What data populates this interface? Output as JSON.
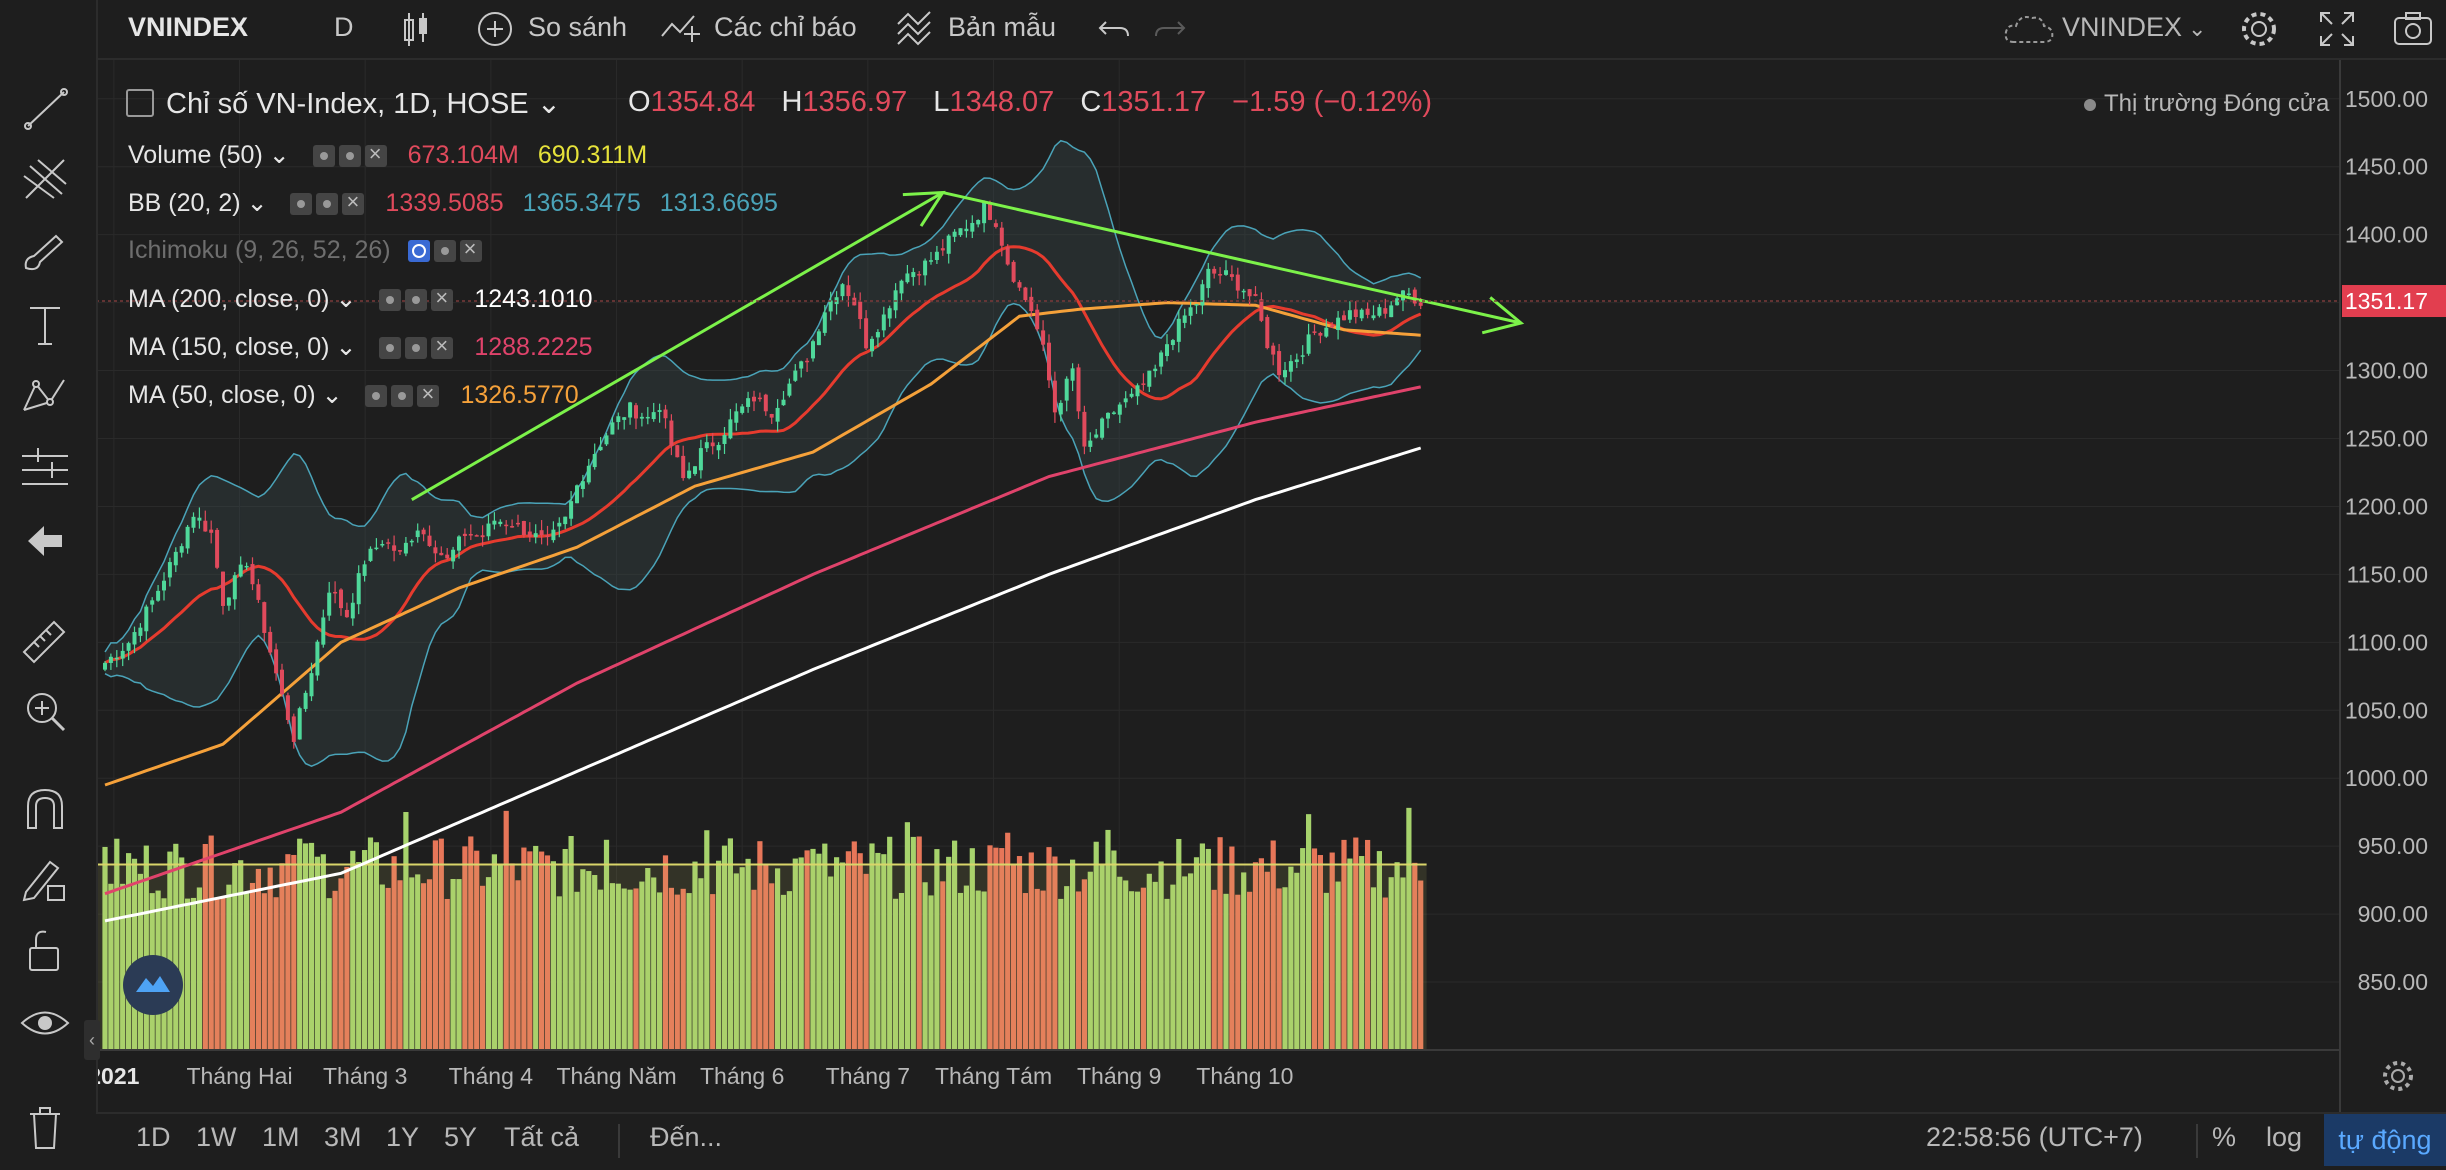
{
  "toolbar": {
    "symbol": "VNINDEX",
    "interval": "D",
    "compare": "So sánh",
    "indicators": "Các chỉ báo",
    "templates": "Bản mẫu",
    "right_symbol": "VNINDEX"
  },
  "legend": {
    "title": "Chỉ số VN-Index, 1D, HOSE",
    "o_label": "O",
    "o": "1354.84",
    "h_label": "H",
    "h": "1356.97",
    "l_label": "L",
    "l": "1348.07",
    "c_label": "C",
    "c": "1351.17",
    "change": "−1.59 (−0.12%)",
    "market_status": "Thị trường Đóng cửa",
    "volume_label": "Volume (50)",
    "volume_v1": "673.104M",
    "volume_v2": "690.311M",
    "bb_label": "BB (20, 2)",
    "bb_v1": "1339.5085",
    "bb_v2": "1365.3475",
    "bb_v3": "1313.6695",
    "ichimoku_label": "Ichimoku (9, 26, 52, 26)",
    "ma200_label": "MA (200, close, 0)",
    "ma200_v": "1243.1010",
    "ma150_label": "MA (150, close, 0)",
    "ma150_v": "1288.2225",
    "ma50_label": "MA (50, close, 0)",
    "ma50_v": "1326.5770"
  },
  "bottom": {
    "ranges": [
      "1D",
      "1W",
      "1M",
      "3M",
      "1Y",
      "5Y",
      "Tất cả"
    ],
    "goto": "Đến...",
    "clock": "22:58:56 (UTC+7)",
    "percent": "%",
    "log": "log",
    "auto": "tự động"
  },
  "colors": {
    "up": "#4fd89a",
    "down": "#e04a5c",
    "ma50": "#f5a13a",
    "ma150": "#e0436b",
    "ma200": "#ffffff",
    "bb_mid": "#e63b2e",
    "bb_band": "#4aa3b8",
    "trend": "#7cf24a",
    "vol_up": "#a6d26c",
    "vol_down": "#e77659",
    "price_tag": "#e23e4f"
  },
  "chart_data": {
    "type": "candlestick",
    "yaxis": {
      "range": [
        800,
        1530
      ],
      "ticks": [
        850,
        900,
        950,
        1000,
        1050,
        1100,
        1150,
        1200,
        1250,
        1300,
        1350,
        1400,
        1450,
        1500
      ],
      "tick_labels": [
        "850.00",
        "900.00",
        "950.00",
        "1000.00",
        "1050.00",
        "1100.00",
        "1150.00",
        "1200.00",
        "1250.00",
        "1300.00",
        "1350.00",
        "1400.00",
        "1450.00",
        "1500.00"
      ]
    },
    "xaxis": {
      "labels": [
        {
          "text": "2021",
          "month": 1,
          "day": 1
        },
        {
          "text": "Tháng Hai",
          "month": 2,
          "day": 1
        },
        {
          "text": "Tháng 3",
          "month": 3,
          "day": 1
        },
        {
          "text": "Tháng 4",
          "month": 4,
          "day": 1
        },
        {
          "text": "Tháng Năm",
          "month": 5,
          "day": 1
        },
        {
          "text": "Tháng 6",
          "month": 6,
          "day": 1
        },
        {
          "text": "Tháng 7",
          "month": 7,
          "day": 1
        },
        {
          "text": "Tháng Tám",
          "month": 8,
          "day": 1
        },
        {
          "text": "Tháng 9",
          "month": 9,
          "day": 1
        },
        {
          "text": "Tháng 10",
          "month": 10,
          "day": 1
        }
      ]
    },
    "last_price_label": "1351.17",
    "close_anchors": [
      [
        0,
        1085
      ],
      [
        4,
        1100
      ],
      [
        8,
        1130
      ],
      [
        12,
        1165
      ],
      [
        15,
        1195
      ],
      [
        18,
        1180
      ],
      [
        20,
        1130
      ],
      [
        24,
        1160
      ],
      [
        27,
        1110
      ],
      [
        30,
        1060
      ],
      [
        32,
        1030
      ],
      [
        35,
        1080
      ],
      [
        38,
        1140
      ],
      [
        41,
        1120
      ],
      [
        44,
        1160
      ],
      [
        47,
        1175
      ],
      [
        50,
        1165
      ],
      [
        53,
        1185
      ],
      [
        56,
        1170
      ],
      [
        58,
        1160
      ],
      [
        61,
        1180
      ],
      [
        64,
        1178
      ],
      [
        66,
        1190
      ],
      [
        69,
        1188
      ],
      [
        72,
        1180
      ],
      [
        75,
        1173
      ],
      [
        78,
        1190
      ],
      [
        80,
        1215
      ],
      [
        83,
        1240
      ],
      [
        86,
        1260
      ],
      [
        89,
        1272
      ],
      [
        92,
        1265
      ],
      [
        94,
        1275
      ],
      [
        96,
        1245
      ],
      [
        98,
        1220
      ],
      [
        101,
        1240
      ],
      [
        104,
        1250
      ],
      [
        107,
        1268
      ],
      [
        110,
        1280
      ],
      [
        113,
        1270
      ],
      [
        116,
        1290
      ],
      [
        119,
        1310
      ],
      [
        122,
        1345
      ],
      [
        125,
        1365
      ],
      [
        127,
        1350
      ],
      [
        129,
        1320
      ],
      [
        132,
        1340
      ],
      [
        135,
        1370
      ],
      [
        138,
        1375
      ],
      [
        141,
        1385
      ],
      [
        144,
        1400
      ],
      [
        147,
        1410
      ],
      [
        149,
        1420
      ],
      [
        151,
        1410
      ],
      [
        153,
        1380
      ],
      [
        155,
        1360
      ],
      [
        157,
        1345
      ],
      [
        159,
        1315
      ],
      [
        161,
        1270
      ],
      [
        164,
        1300
      ],
      [
        166,
        1240
      ],
      [
        169,
        1260
      ],
      [
        172,
        1275
      ],
      [
        174,
        1280
      ],
      [
        176,
        1290
      ],
      [
        178,
        1300
      ],
      [
        180,
        1320
      ],
      [
        183,
        1340
      ],
      [
        185,
        1350
      ],
      [
        187,
        1372
      ],
      [
        190,
        1370
      ],
      [
        193,
        1360
      ],
      [
        195,
        1350
      ],
      [
        197,
        1320
      ],
      [
        199,
        1300
      ],
      [
        202,
        1310
      ],
      [
        205,
        1328
      ],
      [
        208,
        1335
      ],
      [
        211,
        1342
      ],
      [
        214,
        1340
      ],
      [
        217,
        1345
      ],
      [
        219,
        1354
      ],
      [
        221,
        1356
      ],
      [
        223,
        1351
      ]
    ],
    "indicators": {
      "ma50_anchors": [
        [
          0,
          995
        ],
        [
          20,
          1025
        ],
        [
          40,
          1100
        ],
        [
          60,
          1140
        ],
        [
          80,
          1170
        ],
        [
          100,
          1215
        ],
        [
          120,
          1240
        ],
        [
          140,
          1290
        ],
        [
          155,
          1340
        ],
        [
          165,
          1345
        ],
        [
          180,
          1350
        ],
        [
          195,
          1348
        ],
        [
          210,
          1330
        ],
        [
          223,
          1326
        ]
      ],
      "ma150_anchors": [
        [
          0,
          915
        ],
        [
          40,
          975
        ],
        [
          80,
          1070
        ],
        [
          120,
          1150
        ],
        [
          160,
          1222
        ],
        [
          195,
          1262
        ],
        [
          223,
          1288
        ]
      ],
      "ma200_anchors": [
        [
          0,
          895
        ],
        [
          40,
          930
        ],
        [
          80,
          1005
        ],
        [
          120,
          1080
        ],
        [
          160,
          1150
        ],
        [
          195,
          1205
        ],
        [
          223,
          1243
        ]
      ]
    },
    "volume": {
      "max_m": 1100,
      "ma50_m": 690,
      "last": "673.104M"
    },
    "trendlines": [
      {
        "from": {
          "bar": 52,
          "price": 1205
        },
        "to": {
          "bar": 142,
          "price": 1431
        }
      },
      {
        "from": {
          "bar": 142,
          "price": 1431
        },
        "to": {
          "bar": 240,
          "price": 1335
        }
      }
    ]
  }
}
